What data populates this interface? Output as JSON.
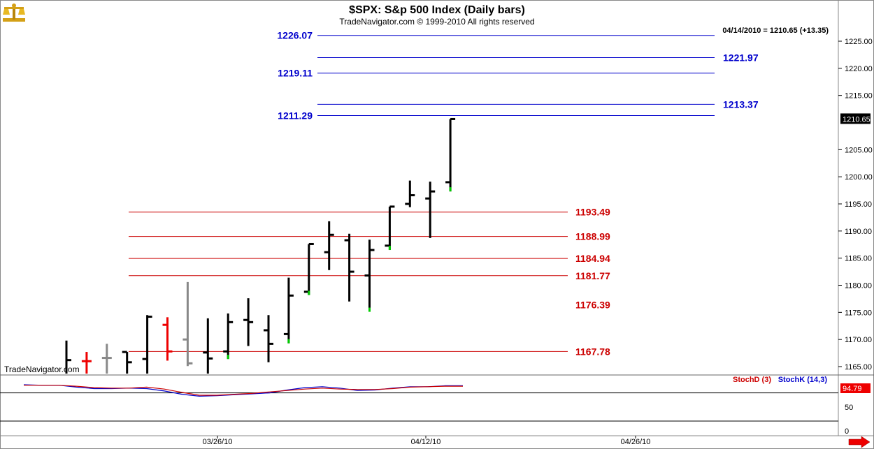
{
  "header": {
    "title": "$SPX:  S&p 500 Index  (Daily bars)",
    "subtitle": "TradeNavigator.com © 1999-2010 All rights reserved",
    "last_bar_info": "04/14/2010 = 1210.65 (+13.35)"
  },
  "watermark": "TradeNavigator.com",
  "colors": {
    "fib_blue": "#0000cc",
    "fib_red": "#cc0000",
    "bar_default": "#000000",
    "bar_up_tick": "#00cc00",
    "bar_red": "#ee0000",
    "bar_gray": "#888888",
    "stochD": "#cc0000",
    "stochK": "#0000cc"
  },
  "chart_data": {
    "type": "ohlc",
    "price_axis": {
      "range": [
        1163.5,
        1229.0
      ],
      "ticks": [
        {
          "value": 1165,
          "label": "1165.00"
        },
        {
          "value": 1170,
          "label": "1170.00"
        },
        {
          "value": 1175,
          "label": "1175.00"
        },
        {
          "value": 1180,
          "label": "1180.00"
        },
        {
          "value": 1185,
          "label": "1185.00"
        },
        {
          "value": 1190,
          "label": "1190.00"
        },
        {
          "value": 1195,
          "label": "1195.00"
        },
        {
          "value": 1200,
          "label": "1200.00"
        },
        {
          "value": 1205,
          "label": "1205.00"
        },
        {
          "value": 1215,
          "label": "1215.00"
        },
        {
          "value": 1220,
          "label": "1220.00"
        },
        {
          "value": 1225,
          "label": "1225.00"
        }
      ],
      "last_price_label": "1210.65"
    },
    "date_labels": [
      "03/26/10",
      "04/12/10",
      "04/26/10"
    ],
    "bars": [
      {
        "o": 1163.0,
        "h": 1169.8,
        "l": 1163.0,
        "c": 1166.2,
        "color": "black"
      },
      {
        "o": 1166.0,
        "h": 1167.7,
        "l": 1163.5,
        "c": 1166.0,
        "color": "red"
      },
      {
        "o": 1166.6,
        "h": 1169.2,
        "l": 1163.5,
        "c": 1166.6,
        "color": "gray"
      },
      {
        "o": 1167.7,
        "h": 1167.7,
        "l": 1163.5,
        "c": 1165.8,
        "color": "black"
      },
      {
        "o": 1166.4,
        "h": 1174.5,
        "l": 1163.5,
        "c": 1174.2,
        "color": "black"
      },
      {
        "o": 1172.7,
        "h": 1174.1,
        "l": 1166.1,
        "c": 1167.8,
        "color": "red"
      },
      {
        "o": 1170.0,
        "h": 1180.6,
        "l": 1165.1,
        "c": 1165.6,
        "color": "gray"
      },
      {
        "o": 1167.6,
        "h": 1173.9,
        "l": 1163.5,
        "c": 1166.5,
        "color": "black"
      },
      {
        "o": 1167.8,
        "h": 1174.8,
        "l": 1166.4,
        "c": 1173.2,
        "color": "black"
      },
      {
        "o": 1173.6,
        "h": 1177.6,
        "l": 1168.8,
        "c": 1173.2,
        "color": "black"
      },
      {
        "o": 1171.7,
        "h": 1174.5,
        "l": 1165.8,
        "c": 1169.2,
        "color": "black"
      },
      {
        "o": 1171.0,
        "h": 1181.4,
        "l": 1169.3,
        "c": 1178.1,
        "color": "black"
      },
      {
        "o": 1178.8,
        "h": 1187.6,
        "l": 1178.2,
        "c": 1187.6,
        "color": "black"
      },
      {
        "o": 1186.1,
        "h": 1191.8,
        "l": 1182.8,
        "c": 1189.3,
        "color": "black"
      },
      {
        "o": 1188.3,
        "h": 1189.5,
        "l": 1177.0,
        "c": 1182.5,
        "color": "black"
      },
      {
        "o": 1181.8,
        "h": 1188.4,
        "l": 1175.1,
        "c": 1186.5,
        "color": "black"
      },
      {
        "o": 1187.3,
        "h": 1194.5,
        "l": 1186.5,
        "c": 1194.5,
        "color": "black"
      },
      {
        "o": 1195.0,
        "h": 1199.3,
        "l": 1194.4,
        "c": 1196.6,
        "color": "black"
      },
      {
        "o": 1196.0,
        "h": 1199.1,
        "l": 1188.7,
        "c": 1197.3,
        "color": "black"
      },
      {
        "o": 1199.0,
        "h": 1210.65,
        "l": 1197.3,
        "c": 1210.65,
        "color": "black"
      }
    ],
    "fib_levels_blue": [
      {
        "value": 1226.07,
        "label": "1226.07",
        "label_side": "left"
      },
      {
        "value": 1221.97,
        "label": "1221.97",
        "label_side": "right"
      },
      {
        "value": 1219.11,
        "label": "1219.11",
        "label_side": "left"
      },
      {
        "value": 1213.37,
        "label": "1213.37",
        "label_side": "right"
      },
      {
        "value": 1211.29,
        "label": "1211.29",
        "label_side": "left"
      }
    ],
    "fib_levels_red": [
      {
        "value": 1193.49,
        "label": "1193.49",
        "line": true
      },
      {
        "value": 1188.99,
        "label": "1188.99",
        "line": true
      },
      {
        "value": 1184.94,
        "label": "1184.94",
        "line": true
      },
      {
        "value": 1181.77,
        "label": "1181.77",
        "line": true
      },
      {
        "value": 1176.39,
        "label": "1176.39",
        "line": false
      },
      {
        "value": 1167.78,
        "label": "1167.78",
        "line": true
      }
    ],
    "stochastics": {
      "range": [
        0,
        100
      ],
      "ticks": [
        {
          "value": 50,
          "label": "50"
        },
        {
          "value": 0,
          "label": "0"
        }
      ],
      "hline": 80,
      "stochD_label": "StochD (3)",
      "stochK_label": "StochK (14,3)",
      "last_value_label": "94.79",
      "stochD": [
        96,
        96,
        96,
        94,
        91,
        90,
        90,
        92,
        88,
        81,
        75,
        75,
        77,
        79,
        82,
        85,
        88,
        90,
        88,
        87,
        87,
        89,
        92,
        93,
        94,
        94
      ],
      "stochK": [
        97,
        96,
        96,
        92,
        89,
        89,
        90,
        89,
        84,
        77,
        73,
        74,
        76,
        78,
        80,
        86,
        91,
        93,
        90,
        85,
        86,
        90,
        93,
        93,
        95,
        95
      ]
    }
  }
}
